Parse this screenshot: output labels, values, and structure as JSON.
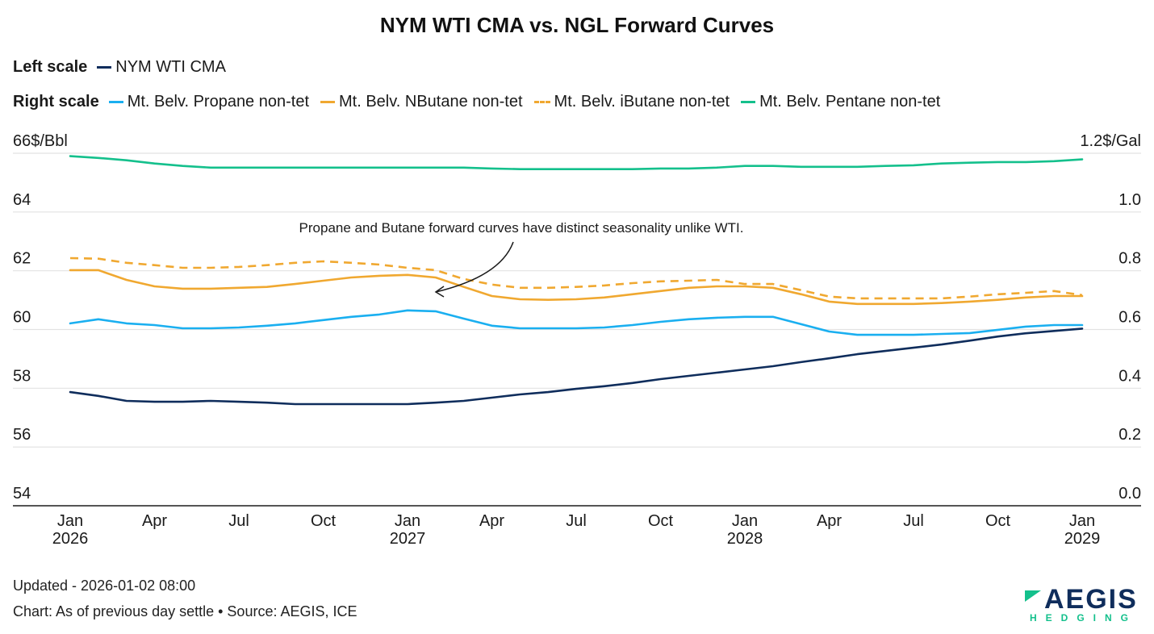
{
  "chart_data": {
    "type": "line",
    "title": "NYM WTI CMA vs. NGL Forward Curves",
    "legend": {
      "left_scale_label": "Left scale",
      "right_scale_label": "Right scale",
      "placement": "top-left"
    },
    "left_axis": {
      "unit_label": "66$/Bbl",
      "ticks": [
        "66$/Bbl",
        "64",
        "62",
        "60",
        "58",
        "56",
        "54"
      ],
      "tick_values": [
        66,
        64,
        62,
        60,
        58,
        56,
        54
      ],
      "range": [
        54,
        66
      ]
    },
    "right_axis": {
      "unit_label": "1.2$/Gal",
      "ticks": [
        "1.2$/Gal",
        "1.0",
        "0.8",
        "0.6",
        "0.4",
        "0.2",
        "0.0"
      ],
      "tick_values": [
        1.2,
        1.0,
        0.8,
        0.6,
        0.4,
        0.2,
        0.0
      ],
      "range": [
        0,
        1.2
      ]
    },
    "x_ticks": [
      {
        "month_index": 0,
        "line1": "Jan",
        "line2": "2026"
      },
      {
        "month_index": 3,
        "line1": "Apr",
        "line2": ""
      },
      {
        "month_index": 6,
        "line1": "Jul",
        "line2": ""
      },
      {
        "month_index": 9,
        "line1": "Oct",
        "line2": ""
      },
      {
        "month_index": 12,
        "line1": "Jan",
        "line2": "2027"
      },
      {
        "month_index": 15,
        "line1": "Apr",
        "line2": ""
      },
      {
        "month_index": 18,
        "line1": "Jul",
        "line2": ""
      },
      {
        "month_index": 21,
        "line1": "Oct",
        "line2": ""
      },
      {
        "month_index": 24,
        "line1": "Jan",
        "line2": "2028"
      },
      {
        "month_index": 27,
        "line1": "Apr",
        "line2": ""
      },
      {
        "month_index": 30,
        "line1": "Jul",
        "line2": ""
      },
      {
        "month_index": 33,
        "line1": "Oct",
        "line2": ""
      },
      {
        "month_index": 36,
        "line1": "Jan",
        "line2": "2029"
      }
    ],
    "x_start": "2026-01",
    "x_end": "2029-01",
    "grid": true,
    "series": [
      {
        "name": "NYM WTI CMA",
        "axis": "left",
        "color": "#0f2d5c",
        "dash": false,
        "values": [
          57.87,
          57.74,
          57.57,
          57.54,
          57.54,
          57.57,
          57.54,
          57.51,
          57.46,
          57.46,
          57.46,
          57.46,
          57.46,
          57.51,
          57.57,
          57.68,
          57.79,
          57.87,
          57.98,
          58.07,
          58.18,
          58.31,
          58.42,
          58.53,
          58.64,
          58.75,
          58.89,
          59.02,
          59.16,
          59.27,
          59.38,
          59.49,
          59.62,
          59.76,
          59.87,
          59.95,
          60.03
        ]
      },
      {
        "name": "Mt. Belv. Propane non-tet",
        "axis": "right",
        "color": "#1aaff0",
        "dash": false,
        "values": [
          0.621,
          0.635,
          0.621,
          0.615,
          0.604,
          0.604,
          0.607,
          0.613,
          0.621,
          0.632,
          0.643,
          0.651,
          0.665,
          0.662,
          0.637,
          0.613,
          0.604,
          0.604,
          0.604,
          0.607,
          0.615,
          0.626,
          0.635,
          0.64,
          0.643,
          0.643,
          0.618,
          0.593,
          0.582,
          0.582,
          0.582,
          0.585,
          0.588,
          0.599,
          0.61,
          0.615,
          0.615
        ]
      },
      {
        "name": "Mt. Belv. NButane non-tet",
        "axis": "right",
        "color": "#f0a830",
        "dash": false,
        "values": [
          0.802,
          0.802,
          0.769,
          0.747,
          0.739,
          0.739,
          0.742,
          0.745,
          0.755,
          0.766,
          0.777,
          0.783,
          0.786,
          0.777,
          0.745,
          0.714,
          0.703,
          0.701,
          0.703,
          0.709,
          0.72,
          0.731,
          0.742,
          0.747,
          0.747,
          0.742,
          0.72,
          0.695,
          0.687,
          0.687,
          0.687,
          0.69,
          0.695,
          0.701,
          0.709,
          0.714,
          0.714
        ]
      },
      {
        "name": "Mt. Belv. iButane non-tet",
        "axis": "right",
        "color": "#f0a830",
        "dash": true,
        "values": [
          0.843,
          0.841,
          0.827,
          0.819,
          0.81,
          0.81,
          0.813,
          0.819,
          0.827,
          0.832,
          0.827,
          0.821,
          0.81,
          0.802,
          0.772,
          0.753,
          0.742,
          0.742,
          0.745,
          0.75,
          0.758,
          0.764,
          0.766,
          0.769,
          0.755,
          0.755,
          0.734,
          0.712,
          0.706,
          0.706,
          0.706,
          0.706,
          0.712,
          0.72,
          0.725,
          0.731,
          0.717
        ]
      },
      {
        "name": "Mt. Belv. Pentane non-tet",
        "axis": "right",
        "color": "#14c08c",
        "dash": false,
        "values": [
          1.19,
          1.184,
          1.176,
          1.165,
          1.157,
          1.151,
          1.151,
          1.151,
          1.151,
          1.151,
          1.151,
          1.151,
          1.151,
          1.151,
          1.151,
          1.148,
          1.146,
          1.146,
          1.146,
          1.146,
          1.146,
          1.148,
          1.148,
          1.151,
          1.157,
          1.157,
          1.154,
          1.154,
          1.154,
          1.157,
          1.159,
          1.165,
          1.168,
          1.17,
          1.17,
          1.173,
          1.179
        ]
      }
    ],
    "annotation": {
      "text": "Propane and Butane forward curves have distinct seasonality unlike WTI.",
      "points_to_month_index": 13
    }
  },
  "footer": {
    "updated": "Updated - 2026-01-02 08:00",
    "source": "Chart: As of previous day settle • Source: AEGIS, ICE"
  },
  "logo": {
    "main": "AEGIS",
    "sub": "HEDGING"
  }
}
